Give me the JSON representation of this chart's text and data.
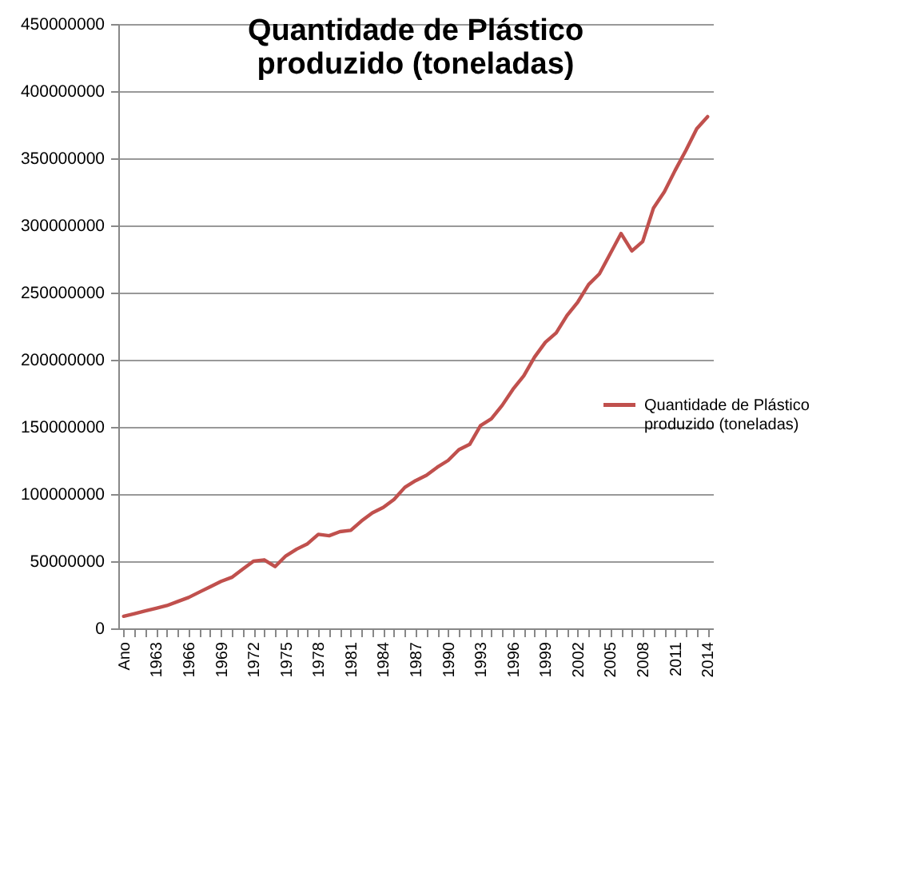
{
  "chart_data": {
    "type": "line",
    "title": "Quantidade de Plástico produzido (toneladas)",
    "categories": [
      "Ano",
      null,
      null,
      "1963",
      null,
      null,
      "1966",
      null,
      null,
      "1969",
      null,
      null,
      "1972",
      null,
      null,
      "1975",
      null,
      null,
      "1978",
      null,
      null,
      "1981",
      null,
      null,
      "1984",
      null,
      null,
      "1987",
      null,
      null,
      "1990",
      null,
      null,
      "1993",
      null,
      null,
      "1996",
      null,
      null,
      "1999",
      null,
      null,
      "2002",
      null,
      null,
      "2005",
      null,
      null,
      "2008",
      null,
      null,
      "2011",
      null,
      null,
      "2014"
    ],
    "series": [
      {
        "name": "Quantidade de Plástico produzido (toneladas)",
        "color": "#c0504d",
        "values": [
          9000000,
          11000000,
          13000000,
          15000000,
          17000000,
          20000000,
          23000000,
          27000000,
          31000000,
          35000000,
          38000000,
          44000000,
          50000000,
          51000000,
          46000000,
          54000000,
          59000000,
          63000000,
          70000000,
          69000000,
          72000000,
          73000000,
          80000000,
          86000000,
          90000000,
          96000000,
          105000000,
          110000000,
          114000000,
          120000000,
          125000000,
          133000000,
          137000000,
          151000000,
          156000000,
          166000000,
          178000000,
          188000000,
          202000000,
          213000000,
          220000000,
          233000000,
          243000000,
          256000000,
          264000000,
          279000000,
          294000000,
          281000000,
          288000000,
          313000000,
          325000000,
          341000000,
          356000000,
          372000000,
          381000000
        ]
      }
    ],
    "ylim": [
      0,
      450000000
    ],
    "yticks": [
      0,
      50000000,
      100000000,
      150000000,
      200000000,
      250000000,
      300000000,
      350000000,
      400000000,
      450000000
    ],
    "grid": "y",
    "legend": "right",
    "marker": "none",
    "line_style": "solid"
  }
}
